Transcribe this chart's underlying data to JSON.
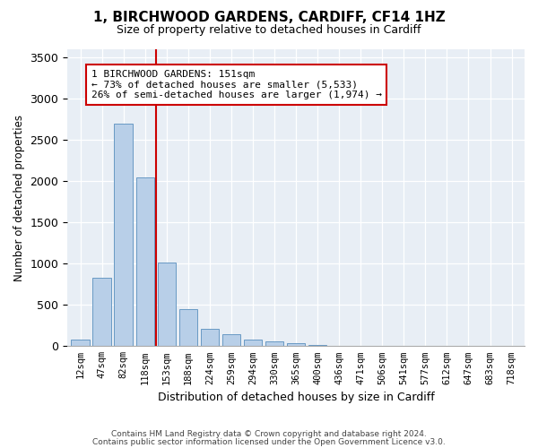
{
  "title": "1, BIRCHWOOD GARDENS, CARDIFF, CF14 1HZ",
  "subtitle": "Size of property relative to detached houses in Cardiff",
  "xlabel": "Distribution of detached houses by size in Cardiff",
  "ylabel": "Number of detached properties",
  "bar_color": "#b8cfe8",
  "bar_edge_color": "#6899c4",
  "vline_color": "#cc0000",
  "vline_index": 3.5,
  "annotation_text": "1 BIRCHWOOD GARDENS: 151sqm\n← 73% of detached houses are smaller (5,533)\n26% of semi-detached houses are larger (1,974) →",
  "annotation_box_color": "#cc0000",
  "categories": [
    "12sqm",
    "47sqm",
    "82sqm",
    "118sqm",
    "153sqm",
    "188sqm",
    "224sqm",
    "259sqm",
    "294sqm",
    "330sqm",
    "365sqm",
    "400sqm",
    "436sqm",
    "471sqm",
    "506sqm",
    "541sqm",
    "577sqm",
    "612sqm",
    "647sqm",
    "683sqm",
    "718sqm"
  ],
  "bar_heights": [
    75,
    830,
    2700,
    2050,
    1010,
    450,
    210,
    140,
    75,
    60,
    40,
    10,
    5,
    3,
    2,
    1,
    1,
    0,
    0,
    0,
    0
  ],
  "ylim": [
    0,
    3600
  ],
  "yticks": [
    0,
    500,
    1000,
    1500,
    2000,
    2500,
    3000,
    3500
  ],
  "footer1": "Contains HM Land Registry data © Crown copyright and database right 2024.",
  "footer2": "Contains public sector information licensed under the Open Government Licence v3.0."
}
